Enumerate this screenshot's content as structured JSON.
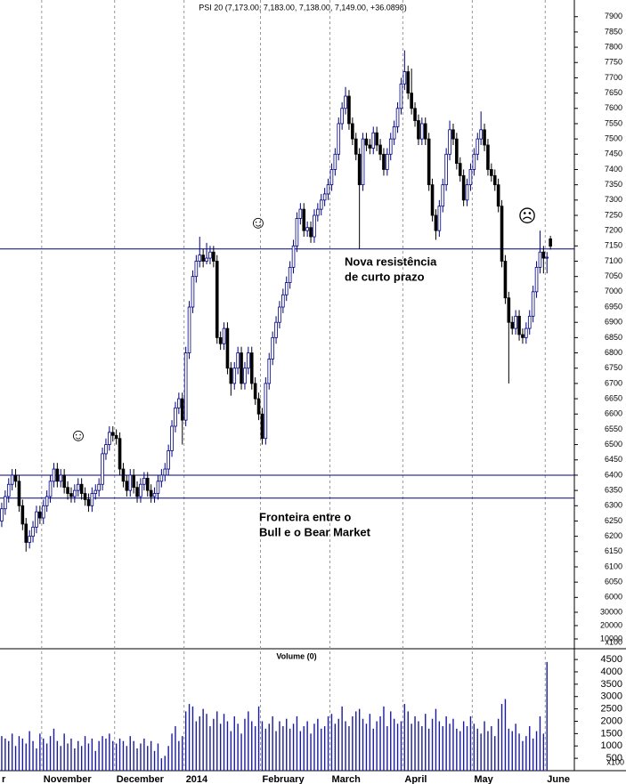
{
  "chart_data": [
    {
      "type": "candlestick",
      "title": "PSI 20 (7,173.00, 7,183.00, 7,138.00, 7,149.00, +36.0898)",
      "open": [
        6250,
        6290,
        6330,
        6370,
        6400,
        6380,
        6300,
        6240,
        6180,
        6200,
        6230,
        6280,
        6260,
        6300,
        6330,
        6380,
        6420,
        6380,
        6400,
        6360,
        6340,
        6330,
        6350,
        6370,
        6340,
        6320,
        6300,
        6340,
        6350,
        6370,
        6470,
        6500,
        6540,
        6530,
        6520,
        6420,
        6380,
        6350,
        6400,
        6360,
        6330,
        6370,
        6390,
        6350,
        6330,
        6340,
        6380,
        6400,
        6420,
        6480,
        6560,
        6620,
        6650,
        6580,
        6800,
        6950,
        7050,
        7100,
        7120,
        7100,
        7110,
        7130,
        7100,
        6850,
        6830,
        6880,
        6750,
        6700,
        6750,
        6800,
        6700,
        6750,
        6800,
        6700,
        6650,
        6600,
        6520,
        6700,
        6780,
        6850,
        6900,
        6950,
        6990,
        7030,
        7080,
        7150,
        7240,
        7270,
        7200,
        7210,
        7180,
        7250,
        7270,
        7300,
        7320,
        7350,
        7400,
        7450,
        7550,
        7600,
        7640,
        7550,
        7500,
        7450,
        7350,
        7500,
        7480,
        7470,
        7520,
        7480,
        7450,
        7400,
        7450,
        7500,
        7540,
        7600,
        7680,
        7720,
        7650,
        7600,
        7560,
        7500,
        7550,
        7500,
        7350,
        7250,
        7200,
        7280,
        7350,
        7450,
        7530,
        7500,
        7420,
        7380,
        7300,
        7350,
        7400,
        7450,
        7500,
        7530,
        7480,
        7400,
        7380,
        7350,
        7280,
        7100,
        6980,
        6900,
        6880,
        6920,
        6860,
        6850,
        6880,
        6920,
        7000,
        7080,
        7130,
        7110,
        7173
      ],
      "high": [
        6310,
        6350,
        6390,
        6420,
        6420,
        6400,
        6320,
        6260,
        6220,
        6250,
        6300,
        6300,
        6320,
        6350,
        6400,
        6440,
        6440,
        6420,
        6420,
        6380,
        6360,
        6370,
        6390,
        6390,
        6360,
        6340,
        6360,
        6370,
        6390,
        6490,
        6520,
        6560,
        6560,
        6550,
        6540,
        6440,
        6400,
        6420,
        6420,
        6380,
        6390,
        6410,
        6410,
        6370,
        6360,
        6400,
        6420,
        6440,
        6500,
        6580,
        6640,
        6670,
        6670,
        6820,
        6970,
        7070,
        7120,
        7180,
        7140,
        7160,
        7150,
        7150,
        7120,
        6870,
        6900,
        6900,
        6770,
        6770,
        6820,
        6820,
        6770,
        6820,
        6820,
        6720,
        6670,
        6620,
        6720,
        6800,
        6870,
        6920,
        6970,
        7010,
        7050,
        7100,
        7170,
        7260,
        7290,
        7290,
        7230,
        7230,
        7270,
        7290,
        7320,
        7340,
        7370,
        7420,
        7470,
        7570,
        7620,
        7670,
        7660,
        7570,
        7520,
        7470,
        7520,
        7520,
        7500,
        7540,
        7540,
        7500,
        7470,
        7470,
        7520,
        7560,
        7620,
        7700,
        7790,
        7740,
        7730,
        7620,
        7580,
        7570,
        7570,
        7520,
        7370,
        7270,
        7300,
        7370,
        7470,
        7560,
        7550,
        7520,
        7440,
        7400,
        7370,
        7420,
        7470,
        7520,
        7590,
        7550,
        7500,
        7420,
        7400,
        7370,
        7300,
        7120,
        7000,
        6920,
        6940,
        6940,
        6880,
        6900,
        6940,
        7020,
        7100,
        7200,
        7150,
        7130,
        7183
      ],
      "low": [
        6230,
        6270,
        6310,
        6350,
        6360,
        6280,
        6220,
        6150,
        6160,
        6180,
        6210,
        6240,
        6240,
        6280,
        6310,
        6360,
        6360,
        6360,
        6340,
        6320,
        6310,
        6310,
        6330,
        6320,
        6300,
        6280,
        6280,
        6320,
        6330,
        6350,
        6450,
        6480,
        6510,
        6500,
        6400,
        6360,
        6330,
        6330,
        6340,
        6310,
        6310,
        6350,
        6330,
        6310,
        6310,
        6320,
        6360,
        6380,
        6400,
        6460,
        6540,
        6600,
        6500,
        6560,
        6780,
        6930,
        7030,
        7080,
        7080,
        7090,
        7090,
        7080,
        6830,
        6810,
        6810,
        6730,
        6660,
        6680,
        6730,
        6680,
        6680,
        6730,
        6680,
        6630,
        6580,
        6500,
        6500,
        6680,
        6760,
        6830,
        6880,
        6930,
        6970,
        7010,
        7060,
        7130,
        7220,
        7180,
        7180,
        7160,
        7160,
        7230,
        7250,
        7280,
        7300,
        7330,
        7380,
        7430,
        7530,
        7580,
        7530,
        7480,
        7430,
        7140,
        7330,
        7460,
        7450,
        7450,
        7460,
        7430,
        7380,
        7380,
        7430,
        7480,
        7520,
        7580,
        7660,
        7630,
        7580,
        7540,
        7480,
        7480,
        7480,
        7330,
        7230,
        7170,
        7180,
        7260,
        7330,
        7430,
        7480,
        7400,
        7360,
        7280,
        7280,
        7330,
        7380,
        7430,
        7480,
        7460,
        7380,
        7360,
        7330,
        7260,
        7080,
        6960,
        6700,
        6860,
        6860,
        6840,
        6830,
        6830,
        6860,
        6900,
        6980,
        7060,
        7060,
        7060,
        7138
      ],
      "close": [
        6290,
        6330,
        6370,
        6400,
        6380,
        6300,
        6240,
        6180,
        6200,
        6230,
        6280,
        6260,
        6300,
        6330,
        6380,
        6420,
        6380,
        6400,
        6360,
        6340,
        6330,
        6350,
        6370,
        6340,
        6320,
        6300,
        6340,
        6350,
        6370,
        6470,
        6500,
        6540,
        6530,
        6520,
        6420,
        6380,
        6350,
        6400,
        6360,
        6330,
        6370,
        6390,
        6350,
        6330,
        6340,
        6380,
        6400,
        6420,
        6480,
        6560,
        6620,
        6650,
        6580,
        6800,
        6950,
        7050,
        7100,
        7120,
        7100,
        7110,
        7130,
        7100,
        6850,
        6830,
        6880,
        6750,
        6700,
        6750,
        6800,
        6700,
        6750,
        6800,
        6700,
        6650,
        6600,
        6520,
        6700,
        6780,
        6850,
        6900,
        6950,
        6990,
        7030,
        7080,
        7150,
        7240,
        7270,
        7200,
        7210,
        7180,
        7250,
        7270,
        7300,
        7320,
        7350,
        7400,
        7450,
        7550,
        7600,
        7640,
        7550,
        7500,
        7450,
        7350,
        7500,
        7480,
        7470,
        7520,
        7480,
        7450,
        7400,
        7450,
        7500,
        7540,
        7600,
        7680,
        7720,
        7650,
        7600,
        7560,
        7500,
        7550,
        7500,
        7350,
        7250,
        7200,
        7280,
        7350,
        7450,
        7530,
        7500,
        7420,
        7380,
        7300,
        7350,
        7400,
        7450,
        7500,
        7530,
        7480,
        7400,
        7380,
        7350,
        7280,
        7100,
        6980,
        6900,
        6880,
        6920,
        6860,
        6850,
        6880,
        6920,
        7000,
        7080,
        7130,
        7110,
        7113,
        7149
      ],
      "up_color": "#ffffff",
      "down_color": "#000000",
      "outline_color": "#000080",
      "ylim": [
        5835,
        7940
      ],
      "yticks": [
        6000,
        6050,
        6100,
        6150,
        6200,
        6250,
        6300,
        6350,
        6400,
        6450,
        6500,
        6550,
        6600,
        6650,
        6700,
        6750,
        6800,
        6850,
        6900,
        6950,
        7000,
        7050,
        7100,
        7150,
        7200,
        7250,
        7300,
        7350,
        7400,
        7450,
        7500,
        7550,
        7600,
        7650,
        7700,
        7750,
        7800,
        7850,
        7900
      ],
      "y2lim": [
        3333,
        485333
      ],
      "y2ticks": [
        10000,
        20000,
        30000
      ],
      "y2_unit": "x100",
      "hlines": [
        7140,
        6400,
        6325
      ],
      "hline_color": "#000080",
      "annotations": [
        [
          "Nova resistência",
          "de curto prazo"
        ],
        [
          "Fronteira entre o",
          "Bull e o Bear Market"
        ]
      ],
      "symbols": [
        "☺",
        "☺",
        "☹"
      ],
      "annotation_color": "#1a1acc"
    },
    {
      "type": "bar",
      "title": "Volume (0)",
      "categories": [
        "r",
        null,
        null,
        null,
        null,
        null,
        null,
        null,
        null,
        null,
        null,
        null,
        "November",
        null,
        null,
        null,
        null,
        null,
        null,
        null,
        null,
        null,
        null,
        null,
        null,
        null,
        null,
        null,
        null,
        null,
        null,
        null,
        null,
        "December",
        null,
        null,
        null,
        null,
        null,
        null,
        null,
        null,
        null,
        null,
        null,
        null,
        null,
        null,
        null,
        null,
        null,
        null,
        null,
        "2014",
        null,
        null,
        null,
        null,
        null,
        null,
        null,
        null,
        null,
        null,
        null,
        null,
        null,
        null,
        null,
        null,
        null,
        null,
        null,
        null,
        null,
        "February",
        null,
        null,
        null,
        null,
        null,
        null,
        null,
        null,
        null,
        null,
        null,
        null,
        null,
        null,
        null,
        null,
        null,
        null,
        null,
        "March",
        null,
        null,
        null,
        null,
        null,
        null,
        null,
        null,
        null,
        null,
        null,
        null,
        null,
        null,
        null,
        null,
        null,
        null,
        null,
        null,
        "April",
        null,
        null,
        null,
        null,
        null,
        null,
        null,
        null,
        null,
        null,
        null,
        null,
        null,
        null,
        null,
        null,
        null,
        null,
        null,
        "May",
        null,
        null,
        null,
        null,
        null,
        null,
        null,
        null,
        null,
        null,
        null,
        null,
        null,
        null,
        null,
        null,
        null,
        null,
        null,
        null,
        "June",
        null
      ],
      "values": [
        1400,
        1300,
        1200,
        1500,
        1000,
        1400,
        1300,
        1100,
        1600,
        1200,
        900,
        1500,
        1300,
        1100,
        1400,
        1700,
        1200,
        1000,
        1500,
        1100,
        1300,
        900,
        1200,
        1000,
        1400,
        1100,
        1300,
        800,
        1200,
        1400,
        1300,
        1500,
        1200,
        1100,
        1300,
        1200,
        1000,
        1400,
        1200,
        900,
        1100,
        1300,
        1000,
        1200,
        800,
        1100,
        500,
        600,
        1000,
        1500,
        1800,
        1200,
        1400,
        2400,
        2700,
        2600,
        2000,
        2200,
        2500,
        2300,
        1800,
        2100,
        2400,
        1900,
        2300,
        2000,
        1600,
        2200,
        1900,
        1500,
        2100,
        2400,
        2000,
        1800,
        2600,
        2000,
        1700,
        1900,
        2200,
        1600,
        2000,
        1800,
        2100,
        1700,
        1900,
        2200,
        1600,
        1800,
        2000,
        1500,
        1900,
        2100,
        1700,
        1800,
        2200,
        2300,
        1900,
        2100,
        2600,
        2000,
        1800,
        2200,
        2400,
        2500,
        2100,
        1900,
        2300,
        1700,
        2000,
        2200,
        2600,
        1800,
        2400,
        2100,
        1900,
        2000,
        2700,
        2400,
        1900,
        2200,
        2000,
        1800,
        2300,
        1700,
        2100,
        2500,
        2000,
        1800,
        2200,
        1900,
        2100,
        1700,
        1600,
        2000,
        1800,
        2200,
        1900,
        1700,
        1500,
        2000,
        1600,
        1800,
        1400,
        2100,
        2700,
        2900,
        1700,
        1600,
        1900,
        1500,
        1200,
        1400,
        1800,
        1300,
        1600,
        2200,
        1500,
        4400,
        0
      ],
      "color": "#1a1aa0",
      "ylim": [
        0,
        4900
      ],
      "yticks": [
        500,
        1000,
        1500,
        2000,
        2500,
        3000,
        3500,
        4000,
        4500
      ],
      "unit": "x100"
    }
  ]
}
